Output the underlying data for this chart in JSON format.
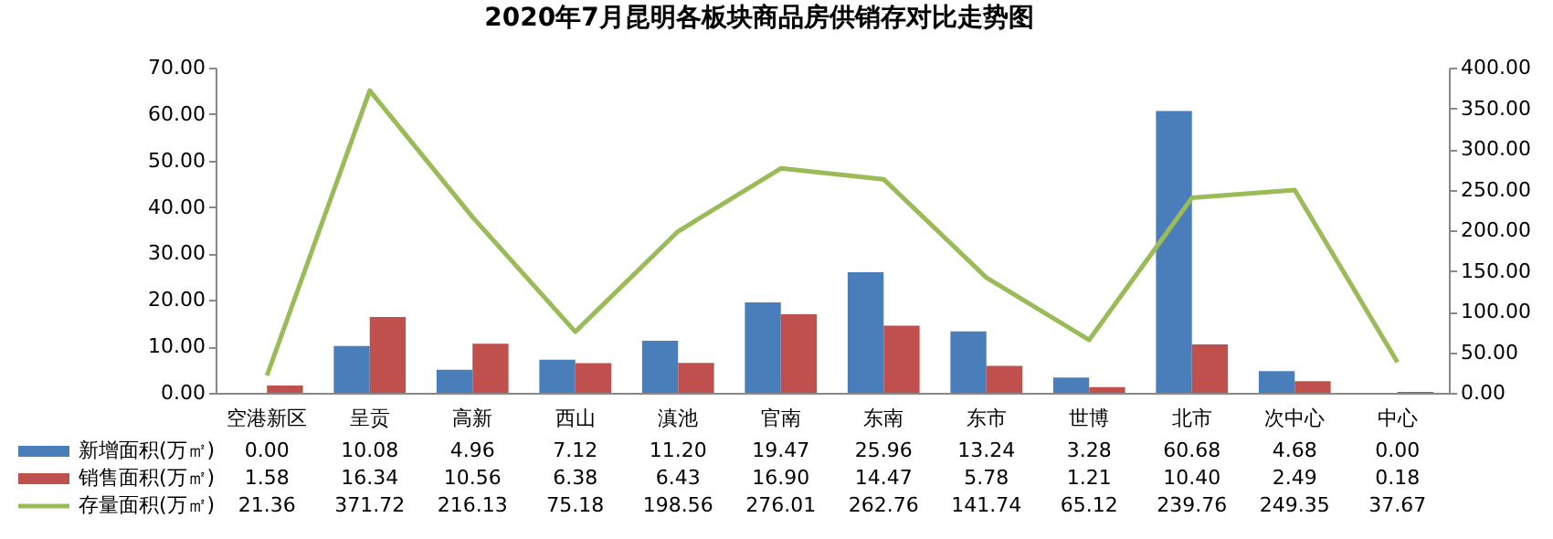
{
  "chart_data": {
    "type": "bar",
    "title": "2020年7月昆明各板块商品房供销存对比走势图",
    "categories": [
      "空港新区",
      "呈贡",
      "高新",
      "西山",
      "滇池",
      "官南",
      "东南",
      "东市",
      "世博",
      "北市",
      "次中心",
      "中心"
    ],
    "series": [
      {
        "name": "新增面积(万㎡)",
        "color": "#4a7ebb",
        "values": [
          0.0,
          10.08,
          4.96,
          7.12,
          11.2,
          19.47,
          25.96,
          13.24,
          3.28,
          60.68,
          4.68,
          0.0
        ],
        "value_labels": [
          "0.00",
          "10.08",
          "4.96",
          "7.12",
          "11.20",
          "19.47",
          "25.96",
          "13.24",
          "3.28",
          "60.68",
          "4.68",
          "0.00"
        ]
      },
      {
        "name": "销售面积(万㎡)",
        "color": "#c0504d",
        "values": [
          1.58,
          16.34,
          10.56,
          6.38,
          6.43,
          16.9,
          14.47,
          5.78,
          1.21,
          10.4,
          2.49,
          0.18
        ],
        "value_labels": [
          "1.58",
          "16.34",
          "10.56",
          "6.38",
          "6.43",
          "16.90",
          "14.47",
          "5.78",
          "1.21",
          "10.40",
          "2.49",
          "0.18"
        ]
      },
      {
        "name": "存量面积(万㎡)",
        "type": "line",
        "axis": "y2",
        "color": "#9bbb59",
        "values": [
          21.36,
          371.72,
          216.13,
          75.18,
          198.56,
          276.01,
          262.76,
          141.74,
          65.12,
          239.76,
          249.35,
          37.67
        ],
        "value_labels": [
          "21.36",
          "371.72",
          "216.13",
          "75.18",
          "198.56",
          "276.01",
          "262.76",
          "141.74",
          "65.12",
          "239.76",
          "249.35",
          "37.67"
        ]
      }
    ],
    "ylim": [
      0,
      70
    ],
    "yticks": [
      {
        "value": 0,
        "label": "0.00"
      },
      {
        "value": 10,
        "label": "10.00"
      },
      {
        "value": 20,
        "label": "20.00"
      },
      {
        "value": 30,
        "label": "30.00"
      },
      {
        "value": 40,
        "label": "40.00"
      },
      {
        "value": 50,
        "label": "50.00"
      },
      {
        "value": 60,
        "label": "60.00"
      },
      {
        "value": 70,
        "label": "70.00"
      }
    ],
    "y2lim": [
      0,
      400
    ],
    "y2ticks": [
      {
        "value": 0,
        "label": "0.00"
      },
      {
        "value": 50,
        "label": "50.00"
      },
      {
        "value": 100,
        "label": "100.00"
      },
      {
        "value": 150,
        "label": "150.00"
      },
      {
        "value": 200,
        "label": "200.00"
      },
      {
        "value": 250,
        "label": "250.00"
      },
      {
        "value": 300,
        "label": "300.00"
      },
      {
        "value": 350,
        "label": "350.00"
      },
      {
        "value": 400,
        "label": "400.00"
      }
    ],
    "grid": false,
    "legend": "bottom left",
    "marker": "none"
  }
}
